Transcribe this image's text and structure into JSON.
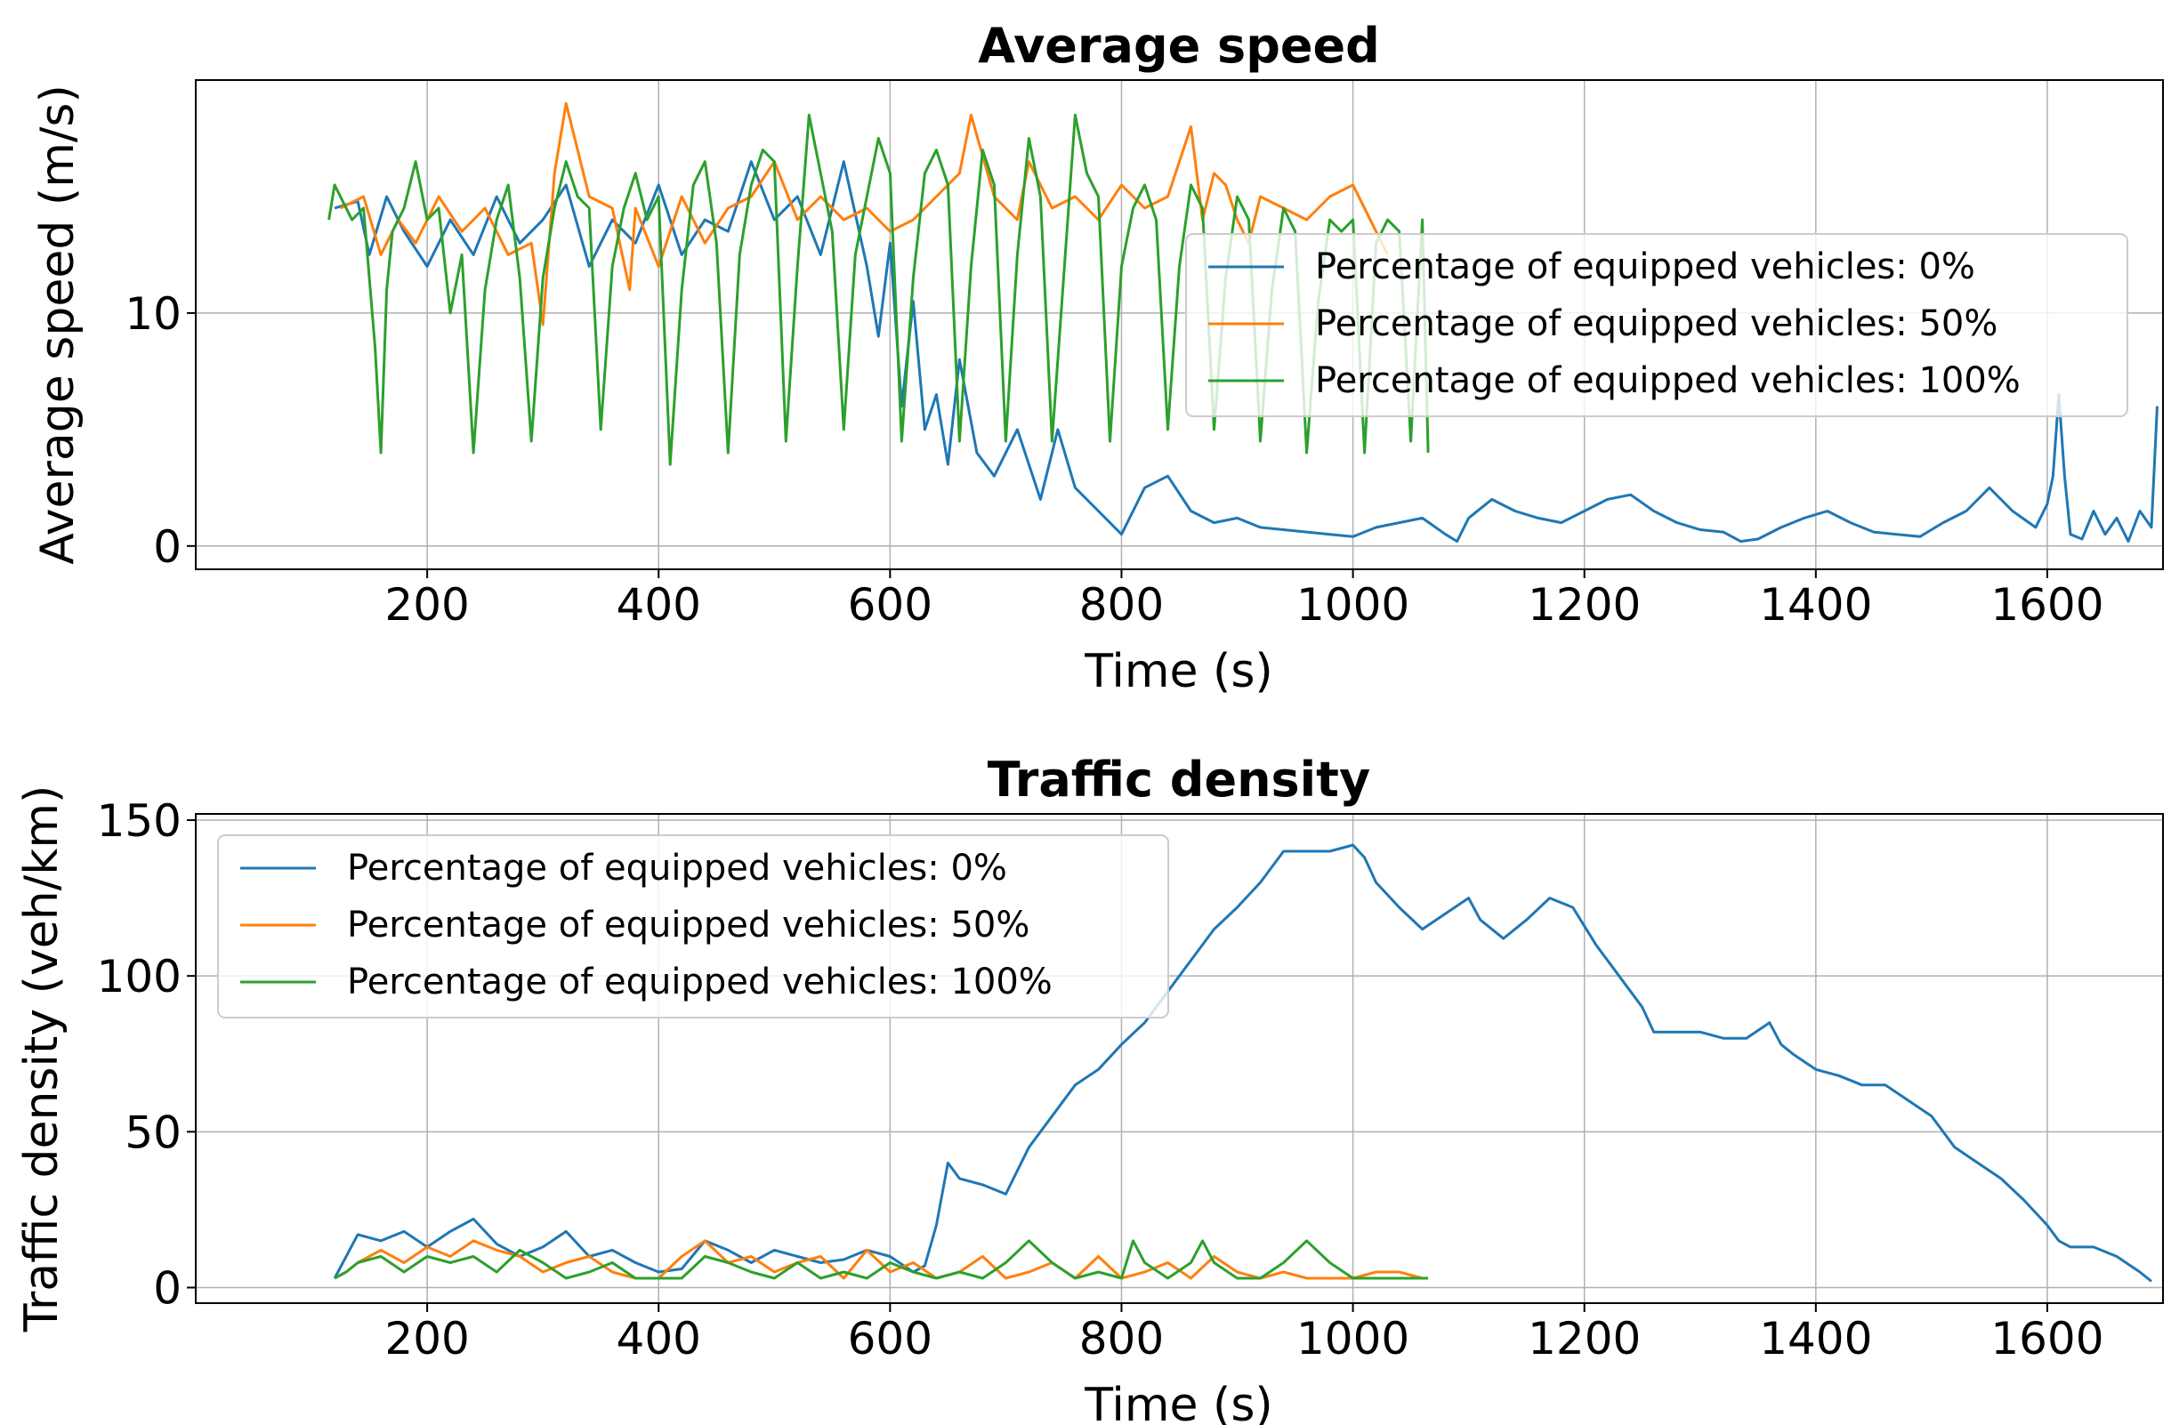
{
  "chart_data": [
    {
      "type": "line",
      "title": "Average speed",
      "xlabel": "Time (s)",
      "ylabel": "Average speed (m/s)",
      "xlim": [
        0,
        1700
      ],
      "ylim": [
        -1,
        20
      ],
      "xticks": [
        200,
        400,
        600,
        800,
        1000,
        1200,
        1400,
        1600
      ],
      "xtick_labels": [
        "200",
        "400",
        "600",
        "800",
        "1000",
        "1200",
        "1400",
        "1600"
      ],
      "yticks": [
        0,
        10
      ],
      "ytick_labels": [
        "0",
        "10"
      ],
      "grid": true,
      "legend_position": "right",
      "series": [
        {
          "name": "Percentage of equipped vehicles: 0%",
          "color": "#1f77b4",
          "x": [
            120,
            140,
            150,
            165,
            180,
            200,
            220,
            240,
            260,
            280,
            300,
            320,
            340,
            360,
            380,
            400,
            420,
            440,
            460,
            480,
            500,
            520,
            540,
            560,
            580,
            590,
            600,
            610,
            620,
            630,
            640,
            650,
            660,
            675,
            690,
            710,
            730,
            745,
            760,
            780,
            800,
            820,
            840,
            860,
            880,
            900,
            920,
            940,
            960,
            980,
            1000,
            1020,
            1040,
            1060,
            1080,
            1090,
            1100,
            1120,
            1140,
            1160,
            1180,
            1200,
            1220,
            1240,
            1260,
            1280,
            1300,
            1320,
            1335,
            1350,
            1370,
            1390,
            1410,
            1430,
            1450,
            1470,
            1490,
            1510,
            1530,
            1550,
            1570,
            1590,
            1600,
            1605,
            1610,
            1615,
            1620,
            1630,
            1640,
            1650,
            1660,
            1670,
            1680,
            1690,
            1695
          ],
          "y": [
            14.5,
            14.8,
            12.5,
            15.0,
            13.5,
            12.0,
            14.0,
            12.5,
            15.0,
            13.0,
            14.0,
            15.5,
            12.0,
            14.0,
            13.0,
            15.5,
            12.5,
            14.0,
            13.5,
            16.5,
            14.0,
            15.0,
            12.5,
            16.5,
            12.0,
            9.0,
            13.0,
            6.0,
            10.5,
            5.0,
            6.5,
            3.5,
            8.0,
            4.0,
            3.0,
            5.0,
            2.0,
            5.0,
            2.5,
            1.5,
            0.5,
            2.5,
            3.0,
            1.5,
            1.0,
            1.2,
            0.8,
            0.7,
            0.6,
            0.5,
            0.4,
            0.8,
            1.0,
            1.2,
            0.5,
            0.2,
            1.2,
            2.0,
            1.5,
            1.2,
            1.0,
            1.5,
            2.0,
            2.2,
            1.5,
            1.0,
            0.7,
            0.6,
            0.2,
            0.3,
            0.8,
            1.2,
            1.5,
            1.0,
            0.6,
            0.5,
            0.4,
            1.0,
            1.5,
            2.5,
            1.5,
            0.8,
            1.8,
            3.0,
            6.5,
            3.0,
            0.5,
            0.3,
            1.5,
            0.5,
            1.2,
            0.2,
            1.5,
            0.8,
            6.0
          ]
        },
        {
          "name": "Percentage of equipped vehicles: 50%",
          "color": "#ff7f0e",
          "x": [
            125,
            145,
            160,
            175,
            190,
            210,
            230,
            250,
            270,
            290,
            300,
            310,
            320,
            340,
            360,
            375,
            380,
            400,
            420,
            440,
            460,
            480,
            500,
            520,
            540,
            560,
            580,
            600,
            620,
            640,
            660,
            670,
            690,
            710,
            720,
            740,
            760,
            780,
            800,
            820,
            840,
            860,
            870,
            880,
            890,
            900,
            910,
            920,
            940,
            960,
            980,
            1000,
            1020,
            1030
          ],
          "y": [
            14.5,
            15.0,
            12.5,
            14.0,
            13.0,
            15.0,
            13.5,
            14.5,
            12.5,
            13.0,
            9.5,
            16.0,
            19.0,
            15.0,
            14.5,
            11.0,
            14.5,
            12.0,
            15.0,
            13.0,
            14.5,
            15.0,
            16.5,
            14.0,
            15.0,
            14.0,
            14.5,
            13.5,
            14.0,
            15.0,
            16.0,
            18.5,
            15.0,
            14.0,
            16.5,
            14.5,
            15.0,
            14.0,
            15.5,
            14.5,
            15.0,
            18.0,
            14.0,
            16.0,
            15.5,
            14.0,
            13.0,
            15.0,
            14.5,
            14.0,
            15.0,
            15.5,
            13.5,
            12.5
          ]
        },
        {
          "name": "Percentage of equipped vehicles: 100%",
          "color": "#2ca02c",
          "x": [
            115,
            120,
            125,
            135,
            145,
            155,
            160,
            165,
            170,
            180,
            190,
            200,
            210,
            220,
            230,
            240,
            250,
            260,
            270,
            280,
            290,
            300,
            310,
            320,
            330,
            340,
            350,
            360,
            370,
            380,
            390,
            400,
            410,
            420,
            430,
            440,
            450,
            460,
            470,
            480,
            490,
            500,
            510,
            520,
            530,
            540,
            550,
            560,
            570,
            580,
            590,
            600,
            610,
            620,
            630,
            640,
            650,
            660,
            670,
            680,
            690,
            700,
            710,
            720,
            730,
            740,
            750,
            760,
            770,
            780,
            790,
            800,
            810,
            820,
            830,
            840,
            850,
            860,
            870,
            880,
            890,
            900,
            910,
            920,
            930,
            940,
            950,
            960,
            970,
            980,
            990,
            1000,
            1010,
            1020,
            1030,
            1040,
            1050,
            1060,
            1065
          ],
          "y": [
            14.0,
            15.5,
            15.0,
            14.0,
            14.5,
            8.5,
            4.0,
            11.0,
            13.5,
            14.5,
            16.5,
            14.0,
            14.5,
            10.0,
            12.5,
            4.0,
            11.0,
            14.0,
            15.5,
            11.5,
            4.5,
            11.5,
            14.5,
            16.5,
            15.0,
            14.5,
            5.0,
            12.0,
            14.5,
            16.0,
            14.0,
            15.0,
            3.5,
            11.0,
            15.5,
            16.5,
            13.0,
            4.0,
            12.5,
            15.5,
            17.0,
            16.5,
            4.5,
            12.0,
            18.5,
            16.0,
            13.5,
            5.0,
            12.5,
            15.0,
            17.5,
            16.0,
            4.5,
            11.5,
            16.0,
            17.0,
            15.5,
            4.5,
            12.0,
            17.0,
            15.5,
            4.5,
            12.5,
            17.5,
            15.0,
            4.5,
            11.5,
            18.5,
            16.0,
            15.0,
            4.5,
            12.0,
            14.5,
            15.5,
            14.0,
            5.0,
            12.0,
            15.5,
            14.5,
            5.0,
            11.5,
            15.0,
            14.0,
            4.5,
            11.0,
            14.5,
            13.5,
            4.0,
            10.5,
            14.0,
            13.5,
            14.0,
            4.0,
            13.0,
            14.0,
            13.5,
            4.5,
            14.0,
            4.0
          ]
        }
      ]
    },
    {
      "type": "line",
      "title": "Traffic density",
      "xlabel": "Time (s)",
      "ylabel": "Traffic density (veh/km)",
      "xlim": [
        0,
        1700
      ],
      "ylim": [
        -5,
        152
      ],
      "xticks": [
        200,
        400,
        600,
        800,
        1000,
        1200,
        1400,
        1600
      ],
      "xtick_labels": [
        "200",
        "400",
        "600",
        "800",
        "1000",
        "1200",
        "1400",
        "1600"
      ],
      "yticks": [
        0,
        50,
        100,
        150
      ],
      "ytick_labels": [
        "0",
        "50",
        "100",
        "150"
      ],
      "grid": true,
      "legend_position": "top-left",
      "series": [
        {
          "name": "Percentage of equipped vehicles: 0%",
          "color": "#1f77b4",
          "x": [
            120,
            130,
            140,
            160,
            180,
            200,
            220,
            240,
            260,
            280,
            300,
            320,
            340,
            360,
            380,
            400,
            420,
            440,
            460,
            480,
            500,
            520,
            540,
            560,
            580,
            600,
            620,
            630,
            640,
            650,
            660,
            680,
            700,
            720,
            740,
            760,
            780,
            800,
            820,
            840,
            860,
            880,
            900,
            920,
            940,
            960,
            980,
            1000,
            1010,
            1020,
            1040,
            1060,
            1080,
            1100,
            1110,
            1130,
            1150,
            1170,
            1190,
            1210,
            1230,
            1250,
            1260,
            1280,
            1300,
            1320,
            1340,
            1360,
            1370,
            1380,
            1400,
            1420,
            1440,
            1460,
            1480,
            1500,
            1520,
            1540,
            1560,
            1580,
            1600,
            1610,
            1620,
            1640,
            1660,
            1680,
            1690
          ],
          "y": [
            3,
            10,
            17,
            15,
            18,
            13,
            18,
            22,
            14,
            10,
            13,
            18,
            10,
            12,
            8,
            5,
            6,
            15,
            12,
            8,
            12,
            10,
            8,
            9,
            12,
            10,
            5,
            7,
            20,
            40,
            35,
            33,
            30,
            45,
            55,
            65,
            70,
            78,
            85,
            95,
            105,
            115,
            122,
            130,
            140,
            140,
            140,
            142,
            138,
            130,
            122,
            115,
            120,
            125,
            118,
            112,
            118,
            125,
            122,
            110,
            100,
            90,
            82,
            82,
            82,
            80,
            80,
            85,
            78,
            75,
            70,
            68,
            65,
            65,
            60,
            55,
            45,
            40,
            35,
            28,
            20,
            15,
            13,
            13,
            10,
            5,
            2
          ]
        },
        {
          "name": "Percentage of equipped vehicles: 50%",
          "color": "#ff7f0e",
          "x": [
            120,
            130,
            140,
            160,
            180,
            200,
            220,
            240,
            260,
            280,
            300,
            320,
            340,
            360,
            380,
            400,
            420,
            440,
            460,
            480,
            500,
            520,
            540,
            560,
            580,
            600,
            620,
            640,
            660,
            680,
            700,
            720,
            740,
            760,
            780,
            800,
            820,
            840,
            860,
            880,
            900,
            920,
            940,
            960,
            980,
            1000,
            1020,
            1040,
            1060
          ],
          "y": [
            3,
            5,
            8,
            12,
            8,
            13,
            10,
            15,
            12,
            10,
            5,
            8,
            10,
            5,
            3,
            3,
            10,
            15,
            8,
            10,
            5,
            8,
            10,
            3,
            12,
            5,
            8,
            3,
            5,
            10,
            3,
            5,
            8,
            3,
            10,
            3,
            5,
            8,
            3,
            10,
            5,
            3,
            5,
            3,
            3,
            3,
            5,
            5,
            3
          ]
        },
        {
          "name": "Percentage of equipped vehicles: 100%",
          "color": "#2ca02c",
          "x": [
            120,
            130,
            140,
            160,
            180,
            200,
            220,
            240,
            260,
            280,
            300,
            320,
            340,
            360,
            380,
            400,
            420,
            440,
            460,
            480,
            500,
            520,
            540,
            560,
            580,
            600,
            620,
            640,
            660,
            680,
            700,
            720,
            740,
            760,
            780,
            800,
            810,
            820,
            840,
            860,
            870,
            880,
            900,
            920,
            940,
            960,
            980,
            1000,
            1020,
            1040,
            1060,
            1065
          ],
          "y": [
            3,
            5,
            8,
            10,
            5,
            10,
            8,
            10,
            5,
            12,
            8,
            3,
            5,
            8,
            3,
            3,
            3,
            10,
            8,
            5,
            3,
            8,
            3,
            5,
            3,
            8,
            5,
            3,
            5,
            3,
            8,
            15,
            8,
            3,
            5,
            3,
            15,
            8,
            3,
            8,
            15,
            8,
            3,
            3,
            8,
            15,
            8,
            3,
            3,
            3,
            3,
            3
          ]
        }
      ]
    }
  ]
}
